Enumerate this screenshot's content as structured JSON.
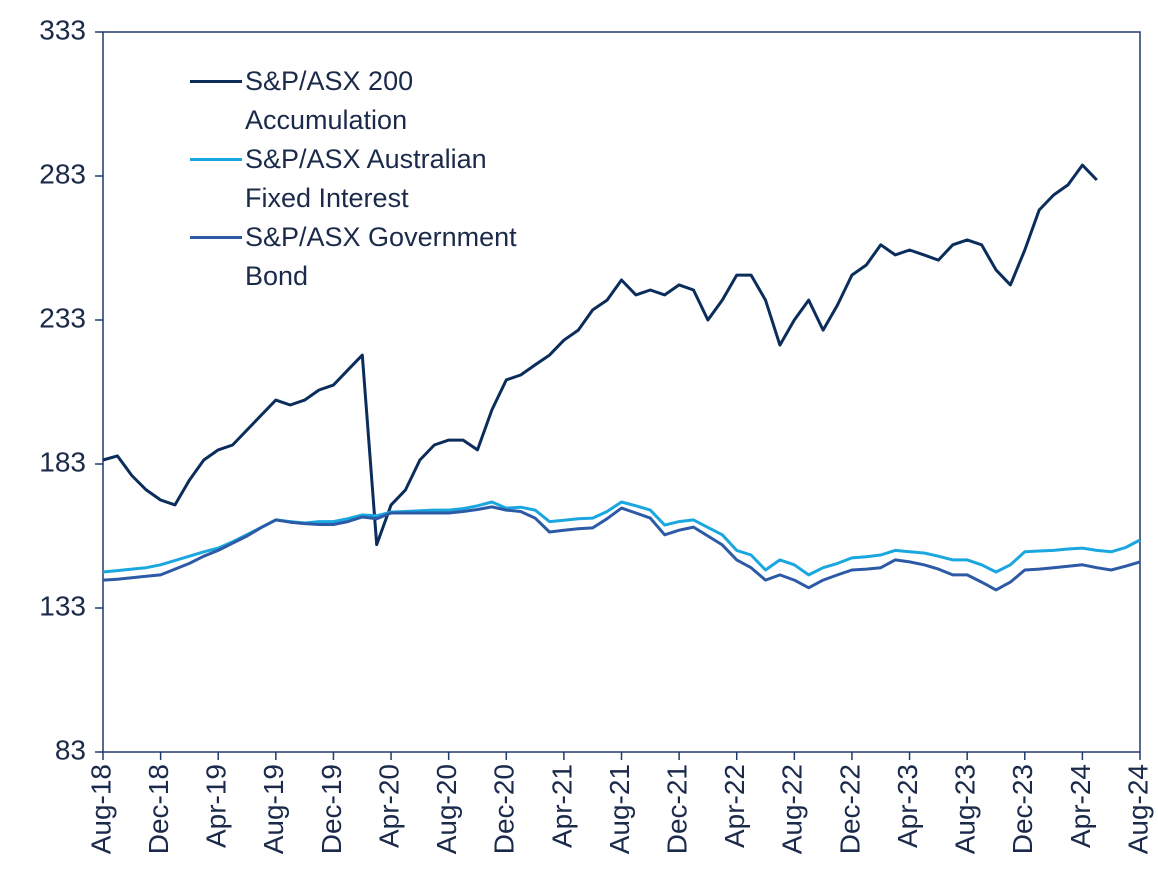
{
  "chart_data": {
    "type": "line",
    "x": [
      "Aug-18",
      "Sep-18",
      "Oct-18",
      "Nov-18",
      "Dec-18",
      "Jan-19",
      "Feb-19",
      "Mar-19",
      "Apr-19",
      "May-19",
      "Jun-19",
      "Jul-19",
      "Aug-19",
      "Sep-19",
      "Oct-19",
      "Nov-19",
      "Dec-19",
      "Jan-20",
      "Feb-20",
      "Mar-20",
      "Apr-20",
      "May-20",
      "Jun-20",
      "Jul-20",
      "Aug-20",
      "Sep-20",
      "Oct-20",
      "Nov-20",
      "Dec-20",
      "Jan-21",
      "Feb-21",
      "Mar-21",
      "Apr-21",
      "May-21",
      "Jun-21",
      "Jul-21",
      "Aug-21",
      "Sep-21",
      "Oct-21",
      "Nov-21",
      "Dec-21",
      "Jan-22",
      "Feb-22",
      "Mar-22",
      "Apr-22",
      "May-22",
      "Jun-22",
      "Jul-22",
      "Aug-22",
      "Sep-22",
      "Oct-22",
      "Nov-22",
      "Dec-22",
      "Jan-23",
      "Feb-23",
      "Mar-23",
      "Apr-23",
      "May-23",
      "Jun-23",
      "Jul-23",
      "Aug-23",
      "Sep-23",
      "Oct-23",
      "Nov-23",
      "Dec-23",
      "Jan-24",
      "Feb-24",
      "Mar-24",
      "Apr-24",
      "May-24",
      "Jun-24",
      "Jul-24",
      "Aug-24"
    ],
    "series": [
      {
        "name": "S&P/ASX 200 Accumulation",
        "color": "#0b2d5b",
        "values": [
          184.4,
          185.8,
          179,
          174,
          170.5,
          168.8,
          177.4,
          184.4,
          187.9,
          189.6,
          194.8,
          200,
          205.2,
          203.5,
          205.2,
          208.7,
          210.4,
          215.6,
          220.8,
          155,
          168.8,
          174,
          184.4,
          189.6,
          191.3,
          191.3,
          187.9,
          201.8,
          212.2,
          213.9,
          217.4,
          220.8,
          226,
          229.5,
          236.5,
          239.9,
          246.9,
          241.7,
          243.4,
          241.7,
          245.2,
          243.4,
          233,
          239.9,
          248.6,
          248.6,
          239.9,
          224.3,
          233,
          239.9,
          229.5,
          238.2,
          248.6,
          252.1,
          259.1,
          255.6,
          257.3,
          255.6,
          253.8,
          259.1,
          260.8,
          259.1,
          250.4,
          245.2,
          257.3,
          271.2,
          276.4,
          279.9,
          286.8,
          281.6,
          null,
          null,
          null
        ]
      },
      {
        "name": "S&P/ASX Australian Fixed Interest",
        "color": "#1aa7e0",
        "values": [
          145.5,
          146,
          146.5,
          147,
          148,
          149.5,
          151,
          152.5,
          153.8,
          156,
          158.5,
          161,
          163.6,
          163,
          162.5,
          163,
          163,
          164,
          165.3,
          165,
          166.3,
          166.5,
          166.8,
          167,
          167,
          167.5,
          168.5,
          169.8,
          167.7,
          168,
          167,
          163,
          163.5,
          164,
          164.2,
          166.5,
          169.8,
          168.5,
          167,
          161.8,
          163,
          163.6,
          161,
          158.4,
          153,
          151.4,
          146.2,
          149.7,
          148,
          144.5,
          147,
          148.5,
          150.4,
          150.8,
          151.4,
          153,
          152.5,
          152.1,
          151,
          149.7,
          149.7,
          148,
          145.5,
          148,
          152.5,
          152.8,
          153,
          153.5,
          153.8,
          153,
          152.5,
          154,
          156.6
        ]
      },
      {
        "name": "S&P/ASX Government Bond",
        "color": "#2d5aa6",
        "values": [
          142.7,
          143,
          143.5,
          144,
          144.5,
          146.5,
          148.5,
          151,
          153,
          155.5,
          158,
          161,
          163.6,
          162.8,
          162.3,
          162,
          162,
          163,
          164.6,
          164,
          166,
          166,
          166,
          166,
          166,
          166.5,
          167.2,
          168.1,
          167,
          166.5,
          164.2,
          159.4,
          160,
          160.5,
          160.8,
          164,
          167.7,
          166,
          164.2,
          158.4,
          160,
          161.1,
          158,
          154.9,
          149.7,
          147,
          142.7,
          144.5,
          142.7,
          140,
          142.7,
          144.5,
          146.2,
          146.5,
          147,
          149.7,
          149,
          148,
          146.5,
          144.5,
          144.5,
          142,
          139.3,
          142,
          146.2,
          146.5,
          147,
          147.5,
          148,
          147,
          146.2,
          147.5,
          149
        ]
      }
    ],
    "xticks": [
      "Aug-18",
      "Dec-18",
      "Apr-19",
      "Aug-19",
      "Dec-19",
      "Apr-20",
      "Aug-20",
      "Dec-20",
      "Apr-21",
      "Aug-21",
      "Dec-21",
      "Apr-22",
      "Aug-22",
      "Dec-22",
      "Apr-23",
      "Aug-23",
      "Dec-23",
      "Apr-24",
      "Aug-24"
    ],
    "ylim": [
      83,
      333
    ],
    "yticks": [
      83,
      133,
      183,
      233,
      283,
      333
    ],
    "legend": "top-left"
  }
}
